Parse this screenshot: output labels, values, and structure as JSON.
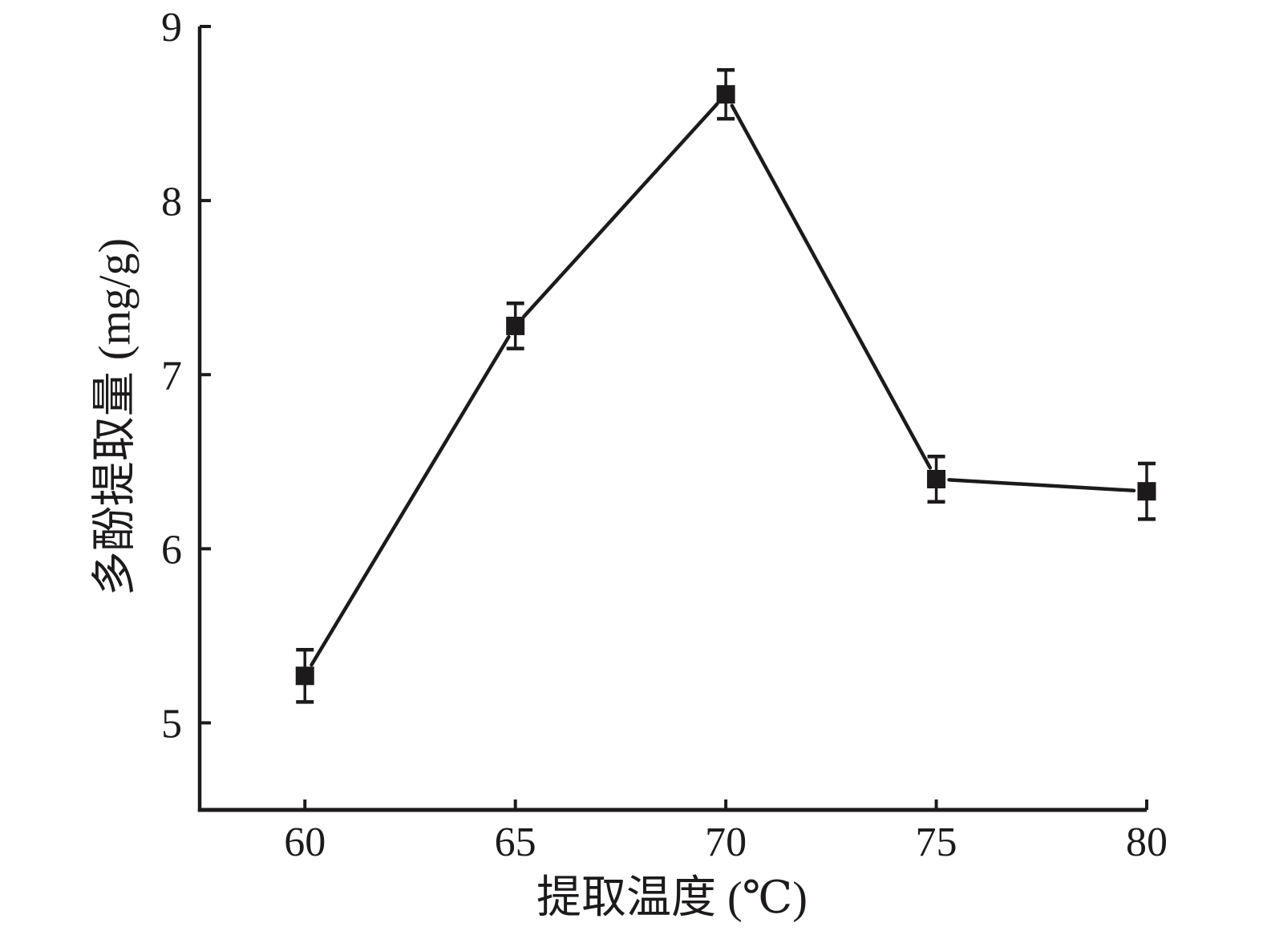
{
  "figure": {
    "background": "#ffffff",
    "ink_color": "#1c1a1b"
  },
  "chart_data": {
    "type": "line",
    "title": "",
    "xlabel": "提取温度 (℃)",
    "ylabel": "多酚提取量 (mg/g)",
    "x": [
      60,
      65,
      70,
      75,
      80
    ],
    "y": [
      5.27,
      7.28,
      8.61,
      6.4,
      6.33
    ],
    "y_err": [
      0.15,
      0.13,
      0.14,
      0.13,
      0.16
    ],
    "x_ticks": [
      "60",
      "65",
      "70",
      "75",
      "80"
    ],
    "x_tick_values": [
      60,
      65,
      70,
      75,
      80
    ],
    "y_ticks": [
      "5",
      "6",
      "7",
      "8",
      "9"
    ],
    "y_tick_values": [
      5,
      6,
      7,
      8,
      9
    ],
    "xlim": [
      57.5,
      80
    ],
    "ylim": [
      4.5,
      9
    ],
    "grid": false,
    "legend": "none",
    "marker": "filled-square",
    "error_bars": "vertical-with-caps",
    "line_color": "#1c1a1b",
    "marker_color": "#1c1a1b",
    "background": "#ffffff"
  }
}
